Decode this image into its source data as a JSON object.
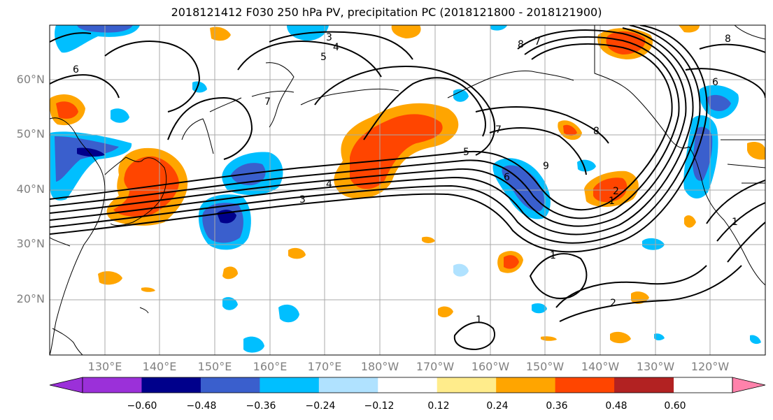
{
  "title": "2018121412 F030 250 hPa PV, precipitation PC (2018121800 - 2018121900)",
  "lat_labels": [
    "60°N",
    "50°N",
    "40°N",
    "30°N",
    "20°N"
  ],
  "lon_labels": [
    "130°E",
    "140°E",
    "150°E",
    "160°E",
    "170°E",
    "180°W",
    "170°W",
    "160°W",
    "150°W",
    "140°W",
    "130°W",
    "120°W"
  ],
  "colorbar": {
    "tick_labels": [
      "−0.60",
      "−0.48",
      "−0.36",
      "−0.24",
      "−0.12",
      "0.12",
      "0.24",
      "0.36",
      "0.48",
      "0.60"
    ],
    "colors": [
      "#9b30d9",
      "#00008b",
      "#3a5fcd",
      "#00bfff",
      "#b0e2ff",
      "#ffffff",
      "#ffec8b",
      "#ffa500",
      "#ff4500",
      "#b22222",
      "#ff82ab"
    ]
  },
  "contour_labels": [
    "3",
    "4",
    "5",
    "6",
    "7",
    "7",
    "8",
    "8",
    "9",
    "6",
    "5",
    "4",
    "3",
    "2",
    "1",
    "1",
    "1",
    "1",
    "2",
    "7",
    "8",
    "6"
  ]
}
